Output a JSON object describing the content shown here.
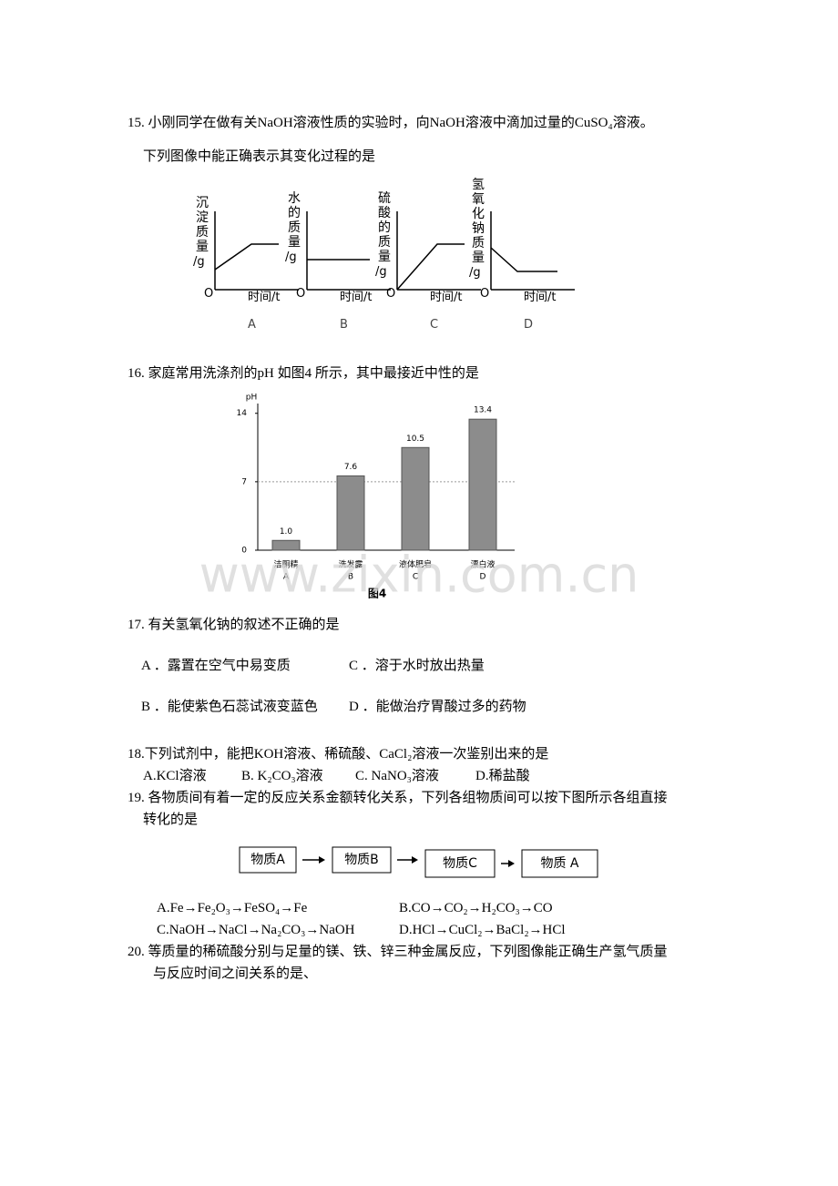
{
  "questions": [
    {
      "text": "15. 小刚同学在做有关NaOH溶液性质的实验时，向NaOH溶液中滴加过量的CuSO₄溶液。",
      "text2": "下列图像中能正确表示其变化过程的是",
      "graphs": [
        {
          "ylabel": "沉淀质量",
          "yunit": "/g",
          "origin": "O",
          "xlabel": "时间/t",
          "letter": "A"
        },
        {
          "ylabel": "水的质量",
          "yunit": "/g",
          "origin": "O",
          "xlabel": "时间/t",
          "letter": "B"
        },
        {
          "ylabel": "硫酸的质量",
          "yunit": "/g",
          "origin": "O",
          "xlabel": "时间/t",
          "letter": "C"
        },
        {
          "ylabel": "氢氧化钠质量",
          "yunit": "/g",
          "origin": "O",
          "xlabel": "时间/t",
          "letter": "D"
        }
      ]
    },
    {
      "text": "16. 家庭常用洗涤剂的pH 如图4 所示，其中最接近中性的是"
    },
    {
      "text": "17. 有关氢氧化钠的叙述不正确的是",
      "options": [
        "A ．露置在空气中易变质",
        "C ．溶于水时放出热量",
        "B ．能使紫色石蕊试液变蓝色",
        "D ．能做治疗胃酸过多的药物"
      ]
    },
    {
      "text": "18.下列试剂中，能把KOH溶液、稀硫酸、CaCl₂溶液一次鉴别出来的是",
      "options": [
        "A.KCl溶液",
        "B. K₂CO₃溶液",
        "C. NaNO₃溶液",
        "D.稀盐酸"
      ]
    },
    {
      "text": "19. 各物质间有着一定的反应关系金额转化关系，下列各组物质间可以按下图所示各组直接",
      "text2": "转化的是",
      "boxes": [
        "物质A",
        "物质B",
        "物质C",
        "物质 A"
      ],
      "options": [
        "A.Fe→Fe₂O₃→FeSO₄→Fe",
        "B.CO→CO₂→H₂CO₃→CO",
        "C.NaOH→NaCl→Na₂CO₃→NaOH",
        "D.HCl→CuCl₂→BaCl₂→HCl"
      ]
    },
    {
      "text": "20.  等质量的稀硫酸分别与足量的镁、铁、锌三种金属反应，下列图像能正确生产氢气质量",
      "text2": "与反应时间之间关系的是、"
    }
  ],
  "chart_data": {
    "type": "bar",
    "ylabel": "pH",
    "categories": [
      "洁厕精",
      "洗发露",
      "液体肥皂",
      "漂白液"
    ],
    "sublabels": [
      "A",
      "B",
      "C",
      "D"
    ],
    "values": [
      1.0,
      7.6,
      10.5,
      13.4
    ],
    "value_labels": [
      "1.0",
      "7.6",
      "10.5",
      "13.4"
    ],
    "ylim": [
      0,
      15
    ],
    "yticks": [
      0,
      7,
      14
    ],
    "ref_line": 7,
    "caption": "图4",
    "color": "#8c8c8c"
  },
  "watermark": "www.zixin.com.cn"
}
